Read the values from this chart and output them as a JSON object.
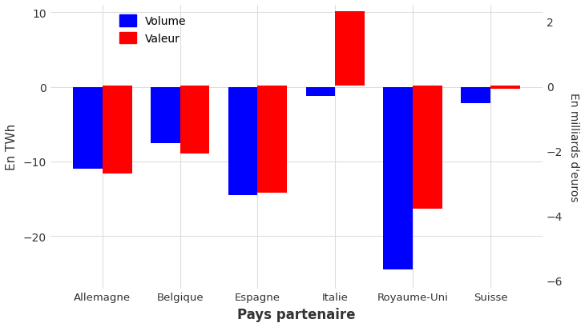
{
  "categories": [
    "Allemagne",
    "Belgique",
    "Espagne",
    "Italie",
    "Royaume-Uni",
    "Suisse"
  ],
  "volume_values": [
    -11.0,
    -7.5,
    -14.5,
    -1.2,
    -24.5,
    -2.2
  ],
  "valeur_values": [
    -2.7,
    -2.1,
    -3.3,
    2.3,
    -3.8,
    -0.1
  ],
  "volume_color": "#0000FF",
  "valeur_color": "#FF0000",
  "ylabel_left": "En TWh",
  "ylabel_right": "En milliards d'euros",
  "xlabel": "Pays partenaire",
  "ylim_left": [
    -27,
    11
  ],
  "ylim_right": [
    -6.25,
    2.5
  ],
  "yticks_left": [
    -20,
    -10,
    0,
    10
  ],
  "yticks_right": [
    -6,
    -4,
    -2,
    0,
    2
  ],
  "panel_color": "#FFFFFF",
  "grid_color": "#DDDDDD",
  "legend_volume": "Volume",
  "legend_valeur": "Valeur",
  "bar_width": 0.38
}
